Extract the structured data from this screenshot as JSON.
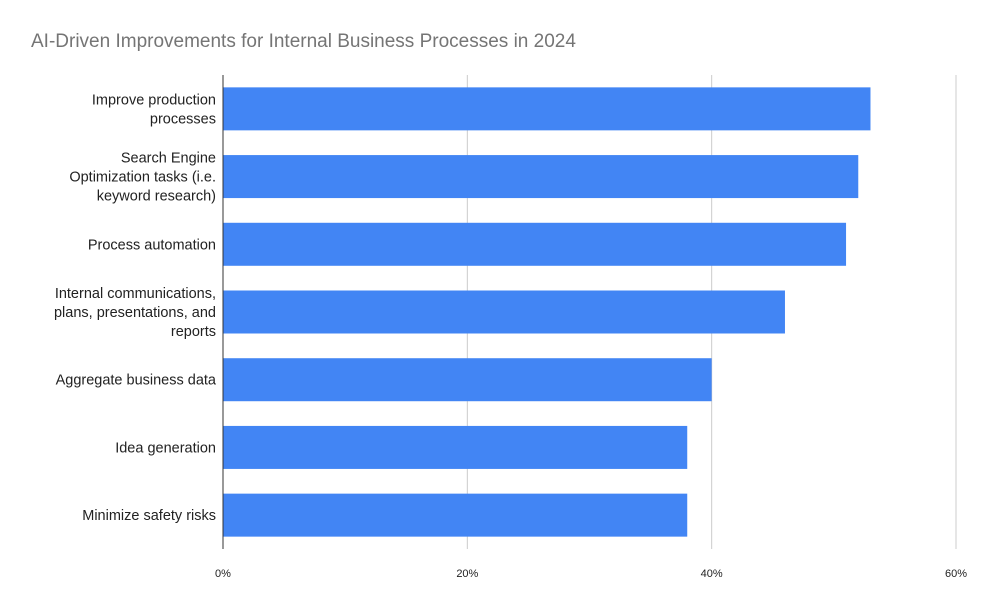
{
  "chart_data": {
    "type": "bar",
    "orientation": "horizontal",
    "title": "AI-Driven Improvements for Internal Business Processes in 2024",
    "categories": [
      [
        "Improve production",
        "processes"
      ],
      [
        "Search Engine",
        "Optimization tasks (i.e.",
        "keyword research)"
      ],
      [
        "Process automation"
      ],
      [
        "Internal communications,",
        "plans, presentations, and",
        "reports"
      ],
      [
        "Aggregate business data"
      ],
      [
        "Idea generation"
      ],
      [
        "Minimize safety risks"
      ]
    ],
    "values": [
      53,
      52,
      51,
      46,
      40,
      38,
      38
    ],
    "unit": "%",
    "xlim": [
      0,
      60
    ],
    "ticks": [
      0,
      20,
      40,
      60
    ],
    "tick_labels": [
      "0%",
      "20%",
      "40%",
      "60%"
    ],
    "xlabel": "",
    "ylabel": "",
    "grid": true,
    "legend": "none",
    "colors": {
      "bar": "#4285f4",
      "grid": "#cccccc",
      "axis": "#333333",
      "title": "#757575"
    }
  }
}
